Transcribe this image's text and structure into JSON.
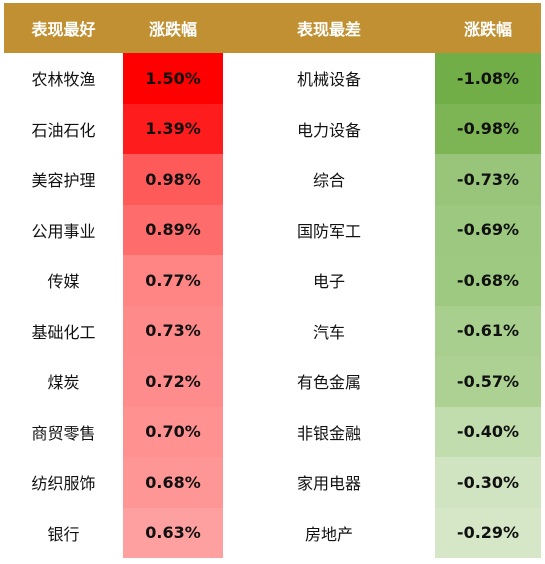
{
  "headers": {
    "best_sector": "表现最好",
    "best_change": "涨跌幅",
    "worst_sector": "表现最差",
    "worst_change": "涨跌幅"
  },
  "chart_data": {
    "type": "table",
    "columns": [
      "表现最好",
      "涨跌幅",
      "表现最差",
      "涨跌幅"
    ],
    "best": [
      {
        "sector": "农林牧渔",
        "change": "1.50%",
        "value": 1.5,
        "color": "#ff0000"
      },
      {
        "sector": "石油石化",
        "change": "1.39%",
        "value": 1.39,
        "color": "#ff1c1c"
      },
      {
        "sector": "美容护理",
        "change": "0.98%",
        "value": 0.98,
        "color": "#ff5a5a"
      },
      {
        "sector": "公用事业",
        "change": "0.89%",
        "value": 0.89,
        "color": "#ff6c6c"
      },
      {
        "sector": "传媒",
        "change": "0.77%",
        "value": 0.77,
        "color": "#ff8585"
      },
      {
        "sector": "基础化工",
        "change": "0.73%",
        "value": 0.73,
        "color": "#ff8a8a"
      },
      {
        "sector": "煤炭",
        "change": "0.72%",
        "value": 0.72,
        "color": "#ff8c8c"
      },
      {
        "sector": "商贸零售",
        "change": "0.70%",
        "value": 0.7,
        "color": "#ff9191"
      },
      {
        "sector": "纺织服饰",
        "change": "0.68%",
        "value": 0.68,
        "color": "#ff9696"
      },
      {
        "sector": "银行",
        "change": "0.63%",
        "value": 0.63,
        "color": "#ffa0a0"
      }
    ],
    "worst": [
      {
        "sector": "机械设备",
        "change": "-1.08%",
        "value": -1.08,
        "color": "#72ae48"
      },
      {
        "sector": "电力设备",
        "change": "-0.98%",
        "value": -0.98,
        "color": "#7db554"
      },
      {
        "sector": "综合",
        "change": "-0.73%",
        "value": -0.73,
        "color": "#98c57a"
      },
      {
        "sector": "国防军工",
        "change": "-0.69%",
        "value": -0.69,
        "color": "#9cc87f"
      },
      {
        "sector": "电子",
        "change": "-0.68%",
        "value": -0.68,
        "color": "#9ec981"
      },
      {
        "sector": "汽车",
        "change": "-0.61%",
        "value": -0.61,
        "color": "#a8cf8d"
      },
      {
        "sector": "有色金属",
        "change": "-0.57%",
        "value": -0.57,
        "color": "#acd192"
      },
      {
        "sector": "非银金融",
        "change": "-0.40%",
        "value": -0.4,
        "color": "#c1dcad"
      },
      {
        "sector": "家用电器",
        "change": "-0.30%",
        "value": -0.3,
        "color": "#d0e4c1"
      },
      {
        "sector": "房地产",
        "change": "-0.29%",
        "value": -0.29,
        "color": "#d5e7c7"
      }
    ]
  }
}
